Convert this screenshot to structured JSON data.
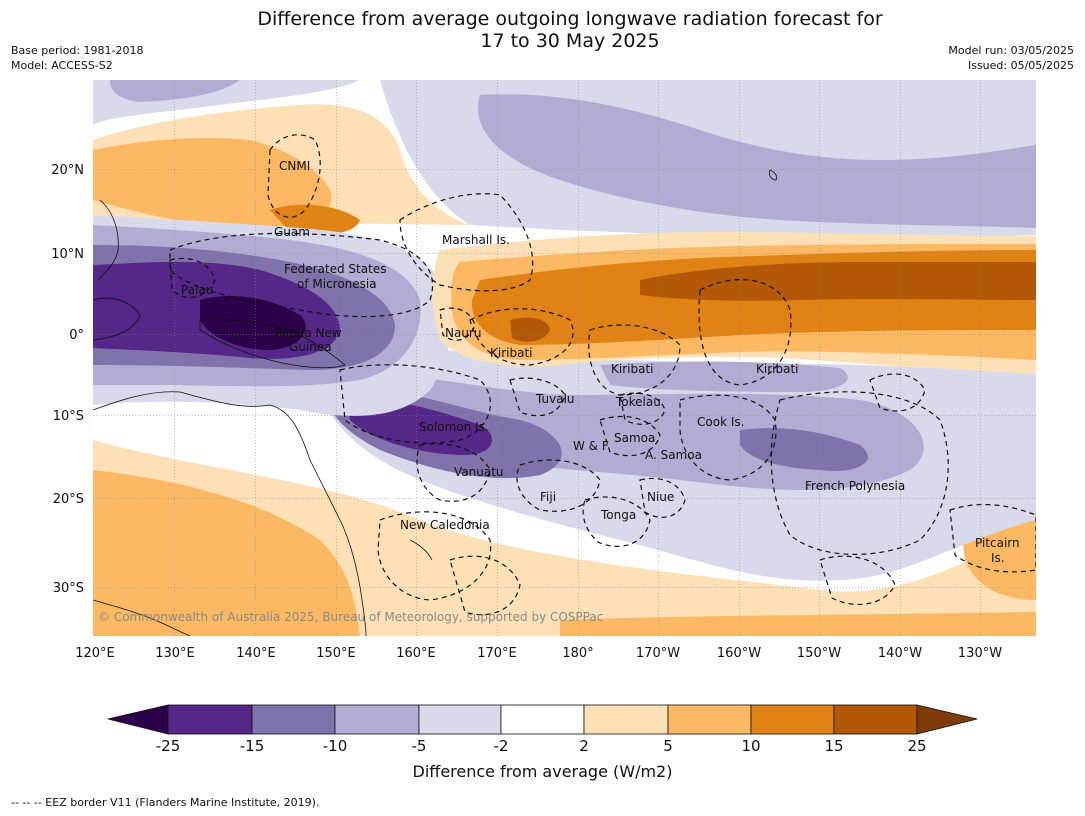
{
  "title": {
    "line1": "Difference from average outgoing longwave radiation forecast for",
    "line2": "17 to 30 May 2025"
  },
  "meta": {
    "base_period": "Base period: 1981-2018",
    "model": "Model: ACCESS-S2",
    "model_run": "Model run: 03/05/2025",
    "issued": "Issued: 05/05/2025"
  },
  "axes": {
    "longitudes": [
      "120°E",
      "130°E",
      "140°E",
      "150°E",
      "160°E",
      "170°E",
      "180°",
      "170°W",
      "160°W",
      "150°W",
      "140°W",
      "130°W"
    ],
    "latitudes": [
      "20°N",
      "10°N",
      "0°",
      "10°S",
      "20°S",
      "30°S"
    ]
  },
  "places": {
    "cnmi": "CNMI",
    "guam": "Guam",
    "marshall": "Marshall Is.",
    "fsm1": "Federated States",
    "fsm2": "of Micronesia",
    "palau": "Palau",
    "png1": "Papua New",
    "png2": "Guinea",
    "nauru": "Nauru",
    "kiribati_w": "Kiribati",
    "kiribati_c": "Kiribati",
    "kiribati_e": "Kiribati",
    "tuvalu": "Tuvalu",
    "tokelau": "Tokelau",
    "cook": "Cook Is.",
    "solomon": "Solomon Is.",
    "samoa": "Samoa",
    "wf": "W & F",
    "asamoa": "A. Samoa",
    "vanuatu": "Vanuatu",
    "fiji": "Fiji",
    "niue": "Niue",
    "tonga": "Tonga",
    "frpoly": "French Polynesia",
    "newcal": "New Caledonia",
    "pitcairn1": "Pitcairn",
    "pitcairn2": "Is."
  },
  "copyright": "© Commonwealth of Australia 2025, Bureau of Meteorology, supported by COSPPac",
  "colorbar": {
    "label": "Difference from average (W/m2)",
    "ticks": [
      "-25",
      "-15",
      "-10",
      "-5",
      "-2",
      "2",
      "5",
      "10",
      "15",
      "25"
    ],
    "colors": [
      "#2d004b",
      "#542788",
      "#8073ac",
      "#b2abd2",
      "#d8daeb",
      "#ffffff",
      "#fee0b6",
      "#fdb863",
      "#e08214",
      "#b35806",
      "#7f3b08"
    ]
  },
  "eez_note": "--  --  -- EEZ border V11 (Flanders Marine Institute, 2019)."
}
